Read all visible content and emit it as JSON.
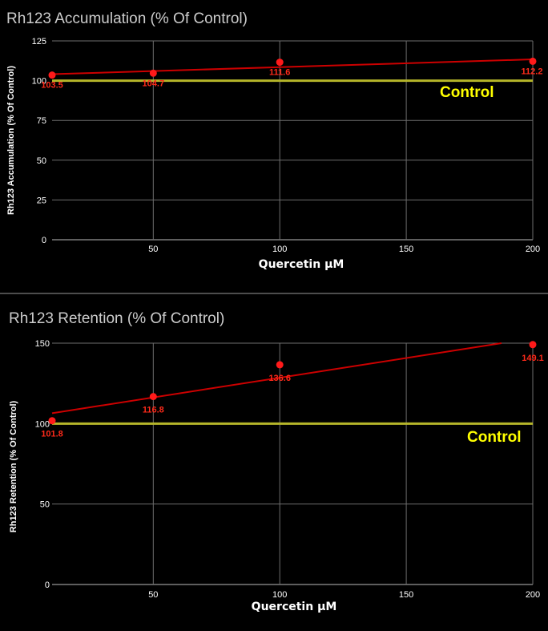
{
  "colors": {
    "trend": "#cc0000",
    "point": "#ff1a1a",
    "control_line": "#b5b52a",
    "control_text": "#ffff00",
    "background": "#000000"
  },
  "chart_data": [
    {
      "type": "scatter",
      "title": "Rh123 Accumulation (% Of Control)",
      "xlabel": "Quercetin µM",
      "ylabel": "Rh123 Accumulation (% Of Control)",
      "xlim": [
        10,
        200
      ],
      "ylim": [
        0,
        125
      ],
      "xticks": [
        "50",
        "100",
        "150",
        "200"
      ],
      "yticks": [
        "0",
        "25",
        "50",
        "75",
        "100",
        "125"
      ],
      "grid": true,
      "x": [
        10,
        50,
        100,
        200
      ],
      "y": [
        103.5,
        104.7,
        111.6,
        112.2
      ],
      "data_labels": [
        "103.5",
        "104.7",
        "111.6",
        "112.2"
      ],
      "trendline": {
        "type": "linear"
      },
      "reference_line": {
        "y": 100,
        "label": "Control"
      }
    },
    {
      "type": "scatter",
      "title": "Rh123 Retention (% Of Control)",
      "xlabel": "Quercetin µM",
      "ylabel": "Rh123 Retention (% Of Control)",
      "xlim": [
        10,
        200
      ],
      "ylim": [
        0,
        150
      ],
      "xticks": [
        "50",
        "100",
        "150",
        "200"
      ],
      "yticks": [
        "0",
        "50",
        "100",
        "150"
      ],
      "grid": true,
      "x": [
        10,
        50,
        100,
        200
      ],
      "y": [
        101.8,
        116.8,
        136.6,
        149.1
      ],
      "data_labels": [
        "101.8",
        "116.8",
        "136.6",
        "149.1"
      ],
      "trendline": {
        "type": "linear"
      },
      "reference_line": {
        "y": 100,
        "label": "Control"
      }
    }
  ]
}
